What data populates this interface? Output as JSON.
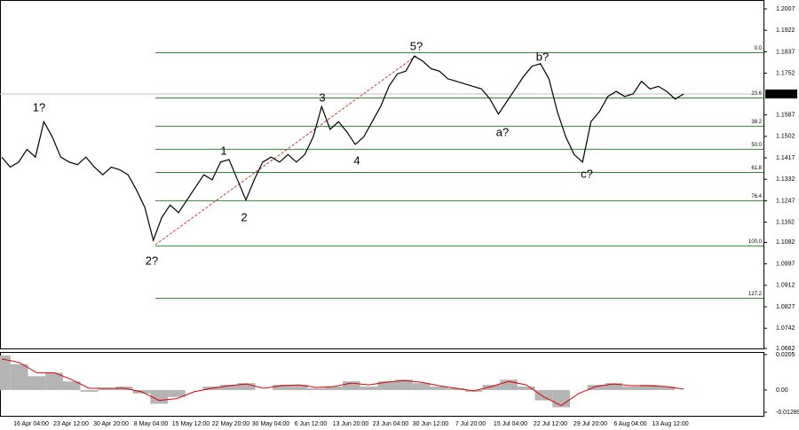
{
  "chart_data": [
    {
      "type": "line",
      "color": "#000000",
      "ylim": [
        1.0662,
        1.2007
      ],
      "yticks": [
        1.2007,
        1.1922,
        1.1837,
        1.1752,
        1.1587,
        1.1502,
        1.1417,
        1.1332,
        1.1247,
        1.1162,
        1.1082,
        1.0997,
        1.0912,
        1.0827,
        1.0742,
        1.0662
      ],
      "last_price": {
        "value": 1.167,
        "label": "1.1670"
      },
      "levels": [
        {
          "label": "0.0",
          "value": 1.1833
        },
        {
          "label": "23.6",
          "value": 1.1654
        },
        {
          "label": "38.2",
          "value": 1.1542
        },
        {
          "label": "50.0",
          "value": 1.1451
        },
        {
          "label": "61.8",
          "value": 1.1359
        },
        {
          "label": "76.4",
          "value": 1.1247
        },
        {
          "label": "100.0",
          "value": 1.1068
        },
        {
          "label": "127.2",
          "value": 1.0861
        }
      ],
      "level_color": "#2e8b2e",
      "x_labels": [
        "16 Apr 04:00",
        "23 Apr 12:00",
        "30 Apr 20:00",
        "8 May 04:00",
        "15 May 12:00",
        "22 May 20:00",
        "30 May 04:00",
        "6 Jun 12:00",
        "13 Jun 20:00",
        "23 Jun 04:00",
        "30 Jun 12:00",
        "7 Jul 20:00",
        "15 Jul 04:00",
        "22 Jul 12:00",
        "29 Jul 20:00",
        "6 Aug 04:00",
        "13 Aug 12:00"
      ],
      "annotations": [
        {
          "text": "1?",
          "color": "#0000ee"
        },
        {
          "text": "2?",
          "color": "#0000ee"
        },
        {
          "text": "1",
          "color": "#e03030"
        },
        {
          "text": "2",
          "color": "#e03030"
        },
        {
          "text": "3",
          "color": "#e03030"
        },
        {
          "text": "4",
          "color": "#e03030"
        },
        {
          "text": "5?",
          "color": "#e03030"
        },
        {
          "text": "a?",
          "color": "#e03030"
        },
        {
          "text": "b?",
          "color": "#e03030"
        },
        {
          "text": "c?",
          "color": "#e03030"
        }
      ],
      "values": [
        1.142,
        1.138,
        1.14,
        1.145,
        1.142,
        1.156,
        1.15,
        1.142,
        1.14,
        1.139,
        1.142,
        1.138,
        1.135,
        1.138,
        1.137,
        1.135,
        1.129,
        1.122,
        1.109,
        1.118,
        1.123,
        1.12,
        1.125,
        1.13,
        1.135,
        1.133,
        1.14,
        1.141,
        1.133,
        1.125,
        1.133,
        1.14,
        1.142,
        1.14,
        1.143,
        1.14,
        1.143,
        1.15,
        1.162,
        1.153,
        1.156,
        1.152,
        1.147,
        1.15,
        1.156,
        1.162,
        1.17,
        1.175,
        1.176,
        1.182,
        1.18,
        1.177,
        1.176,
        1.173,
        1.172,
        1.171,
        1.17,
        1.169,
        1.165,
        1.159,
        1.164,
        1.169,
        1.174,
        1.178,
        1.179,
        1.173,
        1.16,
        1.15,
        1.143,
        1.14,
        1.156,
        1.16,
        1.166,
        1.168,
        1.166,
        1.167,
        1.172,
        1.169,
        1.17,
        1.168,
        1.165,
        1.167
      ]
    },
    {
      "type": "oscillator",
      "ylim": [
        -0.01289,
        0.0205
      ],
      "yticks": [
        0.0205,
        {
          "value": 0,
          "label": "0.00"
        },
        -0.01289
      ],
      "series": [
        {
          "color": "#b4b4b4",
          "values": [
            0.02,
            0.015,
            0.008,
            0.01,
            0.005,
            -0.001,
            0.001,
            0.002,
            -0.002,
            -0.008,
            -0.004,
            0.0,
            0.002,
            0.003,
            0.004,
            0.0,
            0.003,
            0.003,
            0.001,
            0.002,
            0.005,
            0.002,
            0.005,
            0.006,
            0.004,
            0.002,
            0.001,
            -0.001,
            0.003,
            0.006,
            0.002,
            -0.006,
            -0.01,
            0.0,
            0.003,
            0.004,
            0.002,
            0.003,
            0.002,
            0.0
          ]
        },
        {
          "color": "#e00000",
          "values": [
            0.018,
            0.016,
            0.01,
            0.01,
            0.006,
            0.001,
            0.001,
            0.001,
            -0.001,
            -0.006,
            -0.005,
            -0.001,
            0.001,
            0.0025,
            0.0035,
            0.001,
            0.0025,
            0.003,
            0.0015,
            0.002,
            0.004,
            0.003,
            0.0045,
            0.0055,
            0.0045,
            0.0025,
            0.001,
            -0.0005,
            0.002,
            0.005,
            0.003,
            -0.004,
            -0.009,
            -0.002,
            0.002,
            0.0035,
            0.0025,
            0.0025,
            0.002,
            0.0005
          ]
        }
      ]
    }
  ]
}
